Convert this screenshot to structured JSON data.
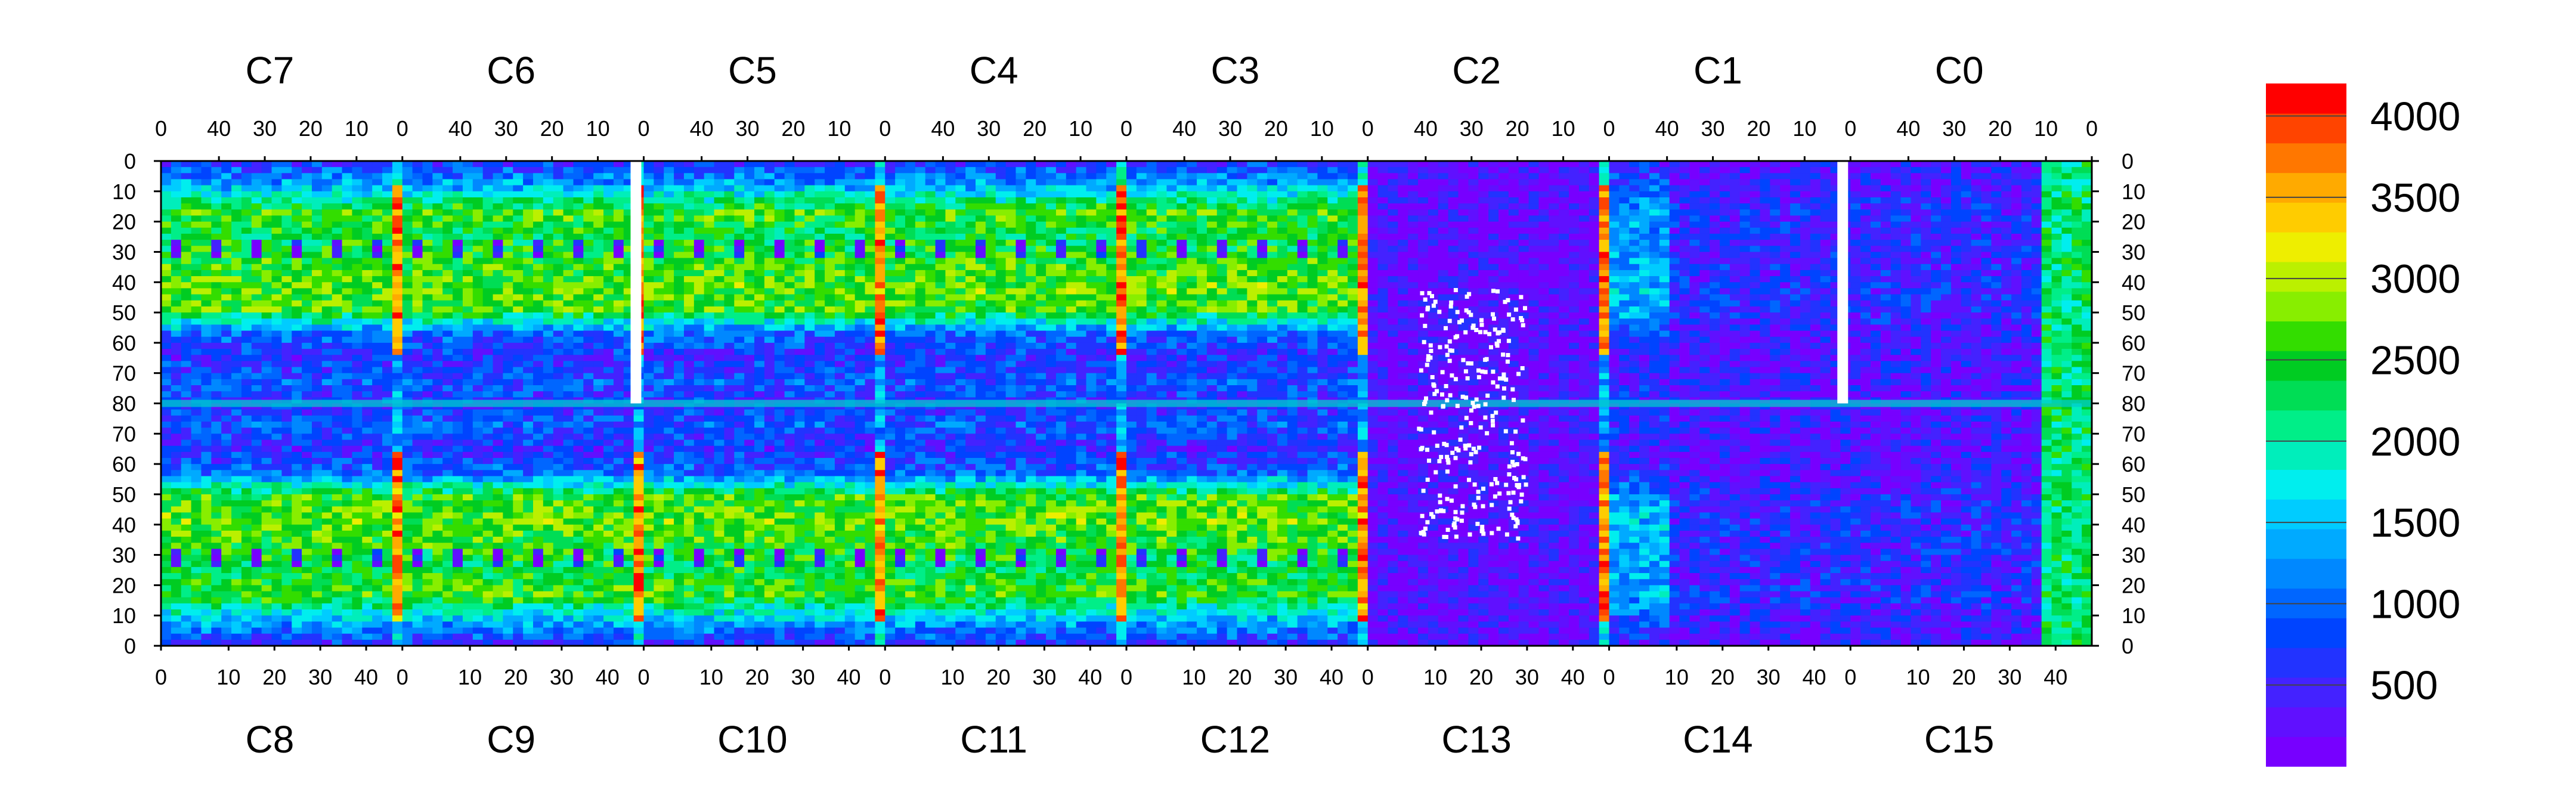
{
  "chart_data": {
    "type": "heatmap",
    "title": "",
    "chips_top": [
      "C7",
      "C6",
      "C5",
      "C4",
      "C3",
      "C2",
      "C1",
      "C0"
    ],
    "chips_bottom": [
      "C8",
      "C9",
      "C10",
      "C11",
      "C12",
      "C13",
      "C14",
      "C15"
    ],
    "top_x_ticks": [
      "40",
      "30",
      "20",
      "10",
      "0"
    ],
    "bottom_x_ticks": [
      "0",
      "10",
      "20",
      "30",
      "40"
    ],
    "y_ticks": [
      "0",
      "10",
      "20",
      "30",
      "40",
      "50",
      "60",
      "70",
      "80",
      "70",
      "60",
      "50",
      "40",
      "30",
      "20",
      "10",
      "0"
    ],
    "colorbar": {
      "min": 0,
      "max": 4200,
      "tick_labels": [
        "4000",
        "3500",
        "3000",
        "2500",
        "2000",
        "1500",
        "1000",
        "500"
      ],
      "tick_values": [
        4000,
        3500,
        3000,
        2500,
        2000,
        1500,
        1000,
        500
      ],
      "colors": [
        "#7700ff",
        "#6010ff",
        "#4422ff",
        "#2233ff",
        "#0044ff",
        "#0066ff",
        "#0088ff",
        "#00aaff",
        "#00ccff",
        "#00eeee",
        "#00eebb",
        "#00ee88",
        "#00dd55",
        "#00cc22",
        "#33dd00",
        "#88ee00",
        "#bbf000",
        "#eeee00",
        "#ffcc00",
        "#ffaa00",
        "#ff7700",
        "#ff4400",
        "#ff0000"
      ]
    },
    "row_profile_0_to_80": [
      700,
      1500,
      2600,
      2300,
      2500,
      2700,
      2600,
      1000,
      600,
      900,
      600
    ],
    "bright_columns_chip_index": [
      0,
      1,
      2,
      3,
      4,
      5
    ],
    "dead_strips_chip_index": [
      1,
      6
    ],
    "low_region_chip_index": [
      5,
      6,
      7
    ]
  }
}
